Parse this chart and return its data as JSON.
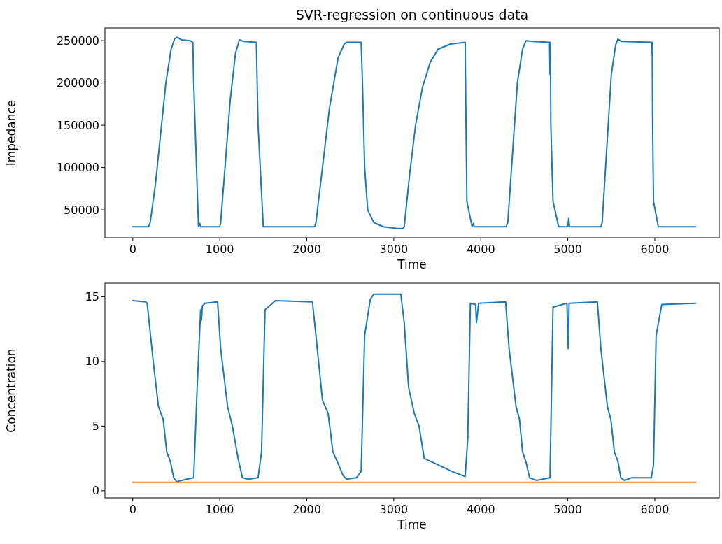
{
  "chart_data": [
    {
      "type": "line",
      "title": "SVR-regression on continuous data",
      "xlabel": "Time",
      "ylabel": "Impedance",
      "xlim": [
        -320,
        6740
      ],
      "ylim": [
        17000,
        265000
      ],
      "xticks": [
        0,
        1000,
        2000,
        3000,
        4000,
        5000,
        6000
      ],
      "yticks": [
        50000,
        100000,
        150000,
        200000,
        250000
      ],
      "series": [
        {
          "color": "#1f77b4",
          "x": [
            0,
            180,
            200,
            260,
            320,
            380,
            440,
            480,
            507,
            560,
            660,
            690,
            700,
            755,
            770,
            780,
            1000,
            1010,
            1060,
            1120,
            1180,
            1225,
            1280,
            1420,
            1440,
            1500,
            2090,
            2105,
            2180,
            2260,
            2360,
            2430,
            2455,
            2625,
            2640,
            2665,
            2700,
            2770,
            2880,
            3040,
            3100,
            3120,
            3180,
            3250,
            3330,
            3420,
            3510,
            3650,
            3820,
            3830,
            3840,
            3900,
            3915,
            3925,
            4290,
            4310,
            4360,
            4420,
            4480,
            4520,
            4600,
            4790,
            4795,
            4800,
            4805,
            4830,
            4895,
            5000,
            5010,
            5020,
            5380,
            5395,
            5440,
            5500,
            5550,
            5575,
            5620,
            5960,
            5965,
            5970,
            5975,
            5985,
            6040,
            6470
          ],
          "values": [
            30000,
            30000,
            35000,
            80000,
            140000,
            200000,
            240000,
            252000,
            254000,
            251000,
            250000,
            248000,
            200000,
            30000,
            34000,
            30000,
            30000,
            35000,
            100000,
            180000,
            235000,
            251000,
            249000,
            248000,
            150000,
            30000,
            30000,
            35000,
            100000,
            170000,
            230000,
            246000,
            248000,
            248000,
            200000,
            100000,
            50000,
            35000,
            30000,
            28000,
            28000,
            30000,
            90000,
            150000,
            195000,
            225000,
            240000,
            246000,
            248000,
            150000,
            60000,
            30000,
            34000,
            30000,
            30000,
            35000,
            110000,
            200000,
            240000,
            250000,
            249000,
            248000,
            210000,
            248000,
            150000,
            60000,
            30000,
            30000,
            40000,
            30000,
            30000,
            35000,
            110000,
            210000,
            245000,
            252000,
            249000,
            248000,
            235000,
            248000,
            150000,
            60000,
            30000,
            30000
          ]
        }
      ]
    },
    {
      "type": "line",
      "xlabel": "Time",
      "ylabel": "Concentration",
      "xlim": [
        -320,
        6740
      ],
      "ylim": [
        -0.55,
        16.05
      ],
      "xticks": [
        0,
        1000,
        2000,
        3000,
        4000,
        5000,
        6000
      ],
      "yticks": [
        0,
        5,
        10,
        15
      ],
      "series": [
        {
          "color": "#1f77b4",
          "x": [
            0,
            150,
            165,
            235,
            295,
            350,
            390,
            430,
            470,
            505,
            620,
            700,
            740,
            780,
            790,
            800,
            830,
            975,
            1010,
            1090,
            1145,
            1210,
            1260,
            1325,
            1440,
            1480,
            1520,
            1640,
            2065,
            2105,
            2180,
            2245,
            2300,
            2360,
            2415,
            2455,
            2570,
            2625,
            2665,
            2730,
            2770,
            3080,
            3120,
            3170,
            3235,
            3290,
            3350,
            3510,
            3665,
            3820,
            3850,
            3880,
            3940,
            3950,
            3975,
            4285,
            4325,
            4405,
            4445,
            4480,
            4520,
            4560,
            4640,
            4795,
            4830,
            4990,
            5005,
            5015,
            5340,
            5380,
            5455,
            5495,
            5535,
            5575,
            5610,
            5650,
            5730,
            5960,
            5985,
            6015,
            6080,
            6470
          ],
          "values": [
            14.7,
            14.6,
            14.5,
            10,
            6.5,
            5.5,
            3,
            2.3,
            1.0,
            0.7,
            0.9,
            1.0,
            8,
            14,
            13.2,
            14.3,
            14.5,
            14.6,
            11,
            6.5,
            5,
            2.5,
            1.0,
            0.9,
            1.0,
            3,
            14,
            14.7,
            14.6,
            12,
            7,
            6,
            3,
            2.1,
            1.2,
            0.9,
            1.0,
            1.5,
            12,
            14.8,
            15.2,
            15.2,
            13,
            8,
            6,
            5,
            2.5,
            2.0,
            1.5,
            1.1,
            4,
            14.5,
            14.4,
            13,
            14.5,
            14.6,
            11,
            6.5,
            5.5,
            3,
            2.2,
            1.0,
            0.8,
            1.0,
            14.2,
            14.5,
            11,
            14.5,
            14.6,
            11,
            6.5,
            5.5,
            3,
            2.3,
            1.0,
            0.8,
            1.0,
            1.0,
            2,
            12,
            14.4,
            14.5
          ]
        },
        {
          "color": "#ff7f0e",
          "x": [
            0,
            6470
          ],
          "values": [
            0.65,
            0.65
          ]
        }
      ]
    }
  ]
}
